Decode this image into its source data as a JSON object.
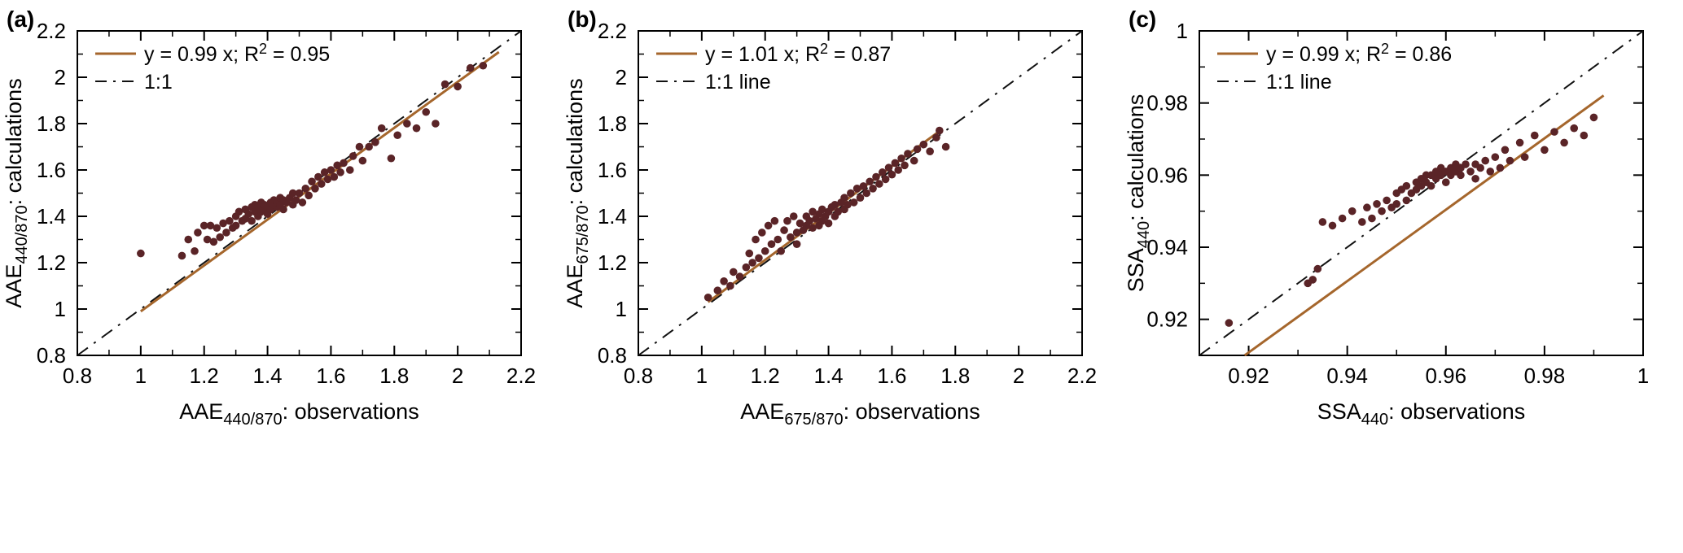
{
  "figure": {
    "background": "#ffffff",
    "text_color": "#000000"
  },
  "chart_data": [
    {
      "type": "scatter",
      "panel_label": "(a)",
      "xlabel": {
        "base": "AAE",
        "sub": "440/870",
        "suffix": ": observations"
      },
      "ylabel": {
        "base": "AAE",
        "sub": "440/870",
        "suffix": ": calculations"
      },
      "xlim": [
        0.8,
        2.2
      ],
      "ylim": [
        0.8,
        2.2
      ],
      "xticks": {
        "values": [
          0.8,
          1,
          1.2,
          1.4,
          1.6,
          1.8,
          2,
          2.2
        ],
        "labels": [
          "0.8",
          "1",
          "1.2",
          "1.4",
          "1.6",
          "1.8",
          "2",
          "2.2"
        ]
      },
      "yticks": {
        "values": [
          0.8,
          1,
          1.2,
          1.4,
          1.6,
          1.8,
          2,
          2.2
        ],
        "labels": [
          "0.8",
          "1",
          "1.2",
          "1.4",
          "1.6",
          "1.8",
          "2",
          "2.2"
        ]
      },
      "fit": {
        "equation_pre": "y = 0.99 x; R",
        "equation_sup": "2",
        "equation_post": " = 0.95",
        "slope": 0.99,
        "r_squared": 0.95,
        "x_range": [
          1.0,
          2.13
        ],
        "color": "#a5662c"
      },
      "one_to_one": {
        "label": "1:1",
        "color": "#111111",
        "dash": "16 9 3 9"
      },
      "marker": {
        "color": "#5a2427",
        "radius": 4.8
      },
      "points": [
        [
          1.0,
          1.24
        ],
        [
          1.13,
          1.23
        ],
        [
          1.15,
          1.3
        ],
        [
          1.17,
          1.25
        ],
        [
          1.18,
          1.33
        ],
        [
          1.2,
          1.36
        ],
        [
          1.21,
          1.3
        ],
        [
          1.22,
          1.36
        ],
        [
          1.23,
          1.29
        ],
        [
          1.24,
          1.35
        ],
        [
          1.25,
          1.31
        ],
        [
          1.26,
          1.37
        ],
        [
          1.27,
          1.33
        ],
        [
          1.28,
          1.38
        ],
        [
          1.29,
          1.35
        ],
        [
          1.3,
          1.4
        ],
        [
          1.3,
          1.36
        ],
        [
          1.31,
          1.42
        ],
        [
          1.32,
          1.38
        ],
        [
          1.33,
          1.43
        ],
        [
          1.33,
          1.39
        ],
        [
          1.34,
          1.41
        ],
        [
          1.35,
          1.44
        ],
        [
          1.35,
          1.38
        ],
        [
          1.36,
          1.42
        ],
        [
          1.36,
          1.45
        ],
        [
          1.37,
          1.4
        ],
        [
          1.37,
          1.44
        ],
        [
          1.38,
          1.42
        ],
        [
          1.38,
          1.46
        ],
        [
          1.39,
          1.43
        ],
        [
          1.39,
          1.45
        ],
        [
          1.4,
          1.41
        ],
        [
          1.4,
          1.44
        ],
        [
          1.41,
          1.46
        ],
        [
          1.41,
          1.43
        ],
        [
          1.42,
          1.45
        ],
        [
          1.42,
          1.47
        ],
        [
          1.43,
          1.44
        ],
        [
          1.43,
          1.46
        ],
        [
          1.44,
          1.45
        ],
        [
          1.44,
          1.48
        ],
        [
          1.45,
          1.43
        ],
        [
          1.45,
          1.47
        ],
        [
          1.46,
          1.46
        ],
        [
          1.47,
          1.48
        ],
        [
          1.48,
          1.45
        ],
        [
          1.48,
          1.5
        ],
        [
          1.49,
          1.47
        ],
        [
          1.5,
          1.5
        ],
        [
          1.51,
          1.46
        ],
        [
          1.52,
          1.52
        ],
        [
          1.53,
          1.49
        ],
        [
          1.54,
          1.55
        ],
        [
          1.55,
          1.52
        ],
        [
          1.56,
          1.57
        ],
        [
          1.57,
          1.54
        ],
        [
          1.58,
          1.59
        ],
        [
          1.59,
          1.56
        ],
        [
          1.6,
          1.6
        ],
        [
          1.61,
          1.57
        ],
        [
          1.62,
          1.62
        ],
        [
          1.63,
          1.59
        ],
        [
          1.64,
          1.63
        ],
        [
          1.66,
          1.6
        ],
        [
          1.67,
          1.66
        ],
        [
          1.69,
          1.7
        ],
        [
          1.7,
          1.64
        ],
        [
          1.72,
          1.7
        ],
        [
          1.74,
          1.72
        ],
        [
          1.76,
          1.78
        ],
        [
          1.79,
          1.65
        ],
        [
          1.81,
          1.75
        ],
        [
          1.84,
          1.8
        ],
        [
          1.87,
          1.78
        ],
        [
          1.9,
          1.85
        ],
        [
          1.93,
          1.8
        ],
        [
          1.96,
          1.97
        ],
        [
          2.0,
          1.96
        ],
        [
          2.04,
          2.04
        ],
        [
          2.08,
          2.05
        ]
      ]
    },
    {
      "type": "scatter",
      "panel_label": "(b)",
      "xlabel": {
        "base": "AAE",
        "sub": "675/870",
        "suffix": ": observations"
      },
      "ylabel": {
        "base": "AAE",
        "sub": "675/870",
        "suffix": ": calculations"
      },
      "xlim": [
        0.8,
        2.2
      ],
      "ylim": [
        0.8,
        2.2
      ],
      "xticks": {
        "values": [
          0.8,
          1,
          1.2,
          1.4,
          1.6,
          1.8,
          2,
          2.2
        ],
        "labels": [
          "0.8",
          "1",
          "1.2",
          "1.4",
          "1.6",
          "1.8",
          "2",
          "2.2"
        ]
      },
      "yticks": {
        "values": [
          0.8,
          1,
          1.2,
          1.4,
          1.6,
          1.8,
          2,
          2.2
        ],
        "labels": [
          "0.8",
          "1",
          "1.2",
          "1.4",
          "1.6",
          "1.8",
          "2",
          "2.2"
        ]
      },
      "fit": {
        "equation_pre": "y = 1.01 x; R",
        "equation_sup": "2",
        "equation_post": " = 0.87",
        "slope": 1.01,
        "r_squared": 0.87,
        "x_range": [
          1.02,
          1.76
        ],
        "color": "#a5662c"
      },
      "one_to_one": {
        "label": "1:1 line",
        "color": "#111111",
        "dash": "16 9 3 9"
      },
      "marker": {
        "color": "#5a2427",
        "radius": 4.8
      },
      "points": [
        [
          1.02,
          1.05
        ],
        [
          1.05,
          1.08
        ],
        [
          1.07,
          1.12
        ],
        [
          1.09,
          1.1
        ],
        [
          1.1,
          1.16
        ],
        [
          1.12,
          1.14
        ],
        [
          1.14,
          1.18
        ],
        [
          1.15,
          1.24
        ],
        [
          1.16,
          1.2
        ],
        [
          1.17,
          1.3
        ],
        [
          1.18,
          1.22
        ],
        [
          1.19,
          1.33
        ],
        [
          1.2,
          1.25
        ],
        [
          1.21,
          1.36
        ],
        [
          1.22,
          1.28
        ],
        [
          1.23,
          1.38
        ],
        [
          1.24,
          1.3
        ],
        [
          1.25,
          1.25
        ],
        [
          1.26,
          1.34
        ],
        [
          1.27,
          1.38
        ],
        [
          1.28,
          1.31
        ],
        [
          1.29,
          1.4
        ],
        [
          1.3,
          1.33
        ],
        [
          1.3,
          1.28
        ],
        [
          1.31,
          1.37
        ],
        [
          1.32,
          1.34
        ],
        [
          1.33,
          1.4
        ],
        [
          1.33,
          1.36
        ],
        [
          1.34,
          1.38
        ],
        [
          1.35,
          1.42
        ],
        [
          1.35,
          1.35
        ],
        [
          1.36,
          1.39
        ],
        [
          1.37,
          1.36
        ],
        [
          1.37,
          1.41
        ],
        [
          1.38,
          1.38
        ],
        [
          1.38,
          1.43
        ],
        [
          1.39,
          1.4
        ],
        [
          1.4,
          1.37
        ],
        [
          1.4,
          1.42
        ],
        [
          1.41,
          1.44
        ],
        [
          1.42,
          1.4
        ],
        [
          1.42,
          1.45
        ],
        [
          1.43,
          1.42
        ],
        [
          1.44,
          1.46
        ],
        [
          1.45,
          1.43
        ],
        [
          1.45,
          1.48
        ],
        [
          1.46,
          1.45
        ],
        [
          1.47,
          1.5
        ],
        [
          1.48,
          1.46
        ],
        [
          1.49,
          1.52
        ],
        [
          1.5,
          1.48
        ],
        [
          1.51,
          1.53
        ],
        [
          1.52,
          1.5
        ],
        [
          1.53,
          1.55
        ],
        [
          1.54,
          1.52
        ],
        [
          1.55,
          1.57
        ],
        [
          1.56,
          1.54
        ],
        [
          1.57,
          1.59
        ],
        [
          1.58,
          1.56
        ],
        [
          1.59,
          1.61
        ],
        [
          1.6,
          1.58
        ],
        [
          1.61,
          1.63
        ],
        [
          1.62,
          1.6
        ],
        [
          1.63,
          1.65
        ],
        [
          1.64,
          1.62
        ],
        [
          1.65,
          1.67
        ],
        [
          1.67,
          1.64
        ],
        [
          1.68,
          1.69
        ],
        [
          1.7,
          1.71
        ],
        [
          1.72,
          1.68
        ],
        [
          1.74,
          1.74
        ],
        [
          1.75,
          1.77
        ],
        [
          1.77,
          1.7
        ]
      ]
    },
    {
      "type": "scatter",
      "panel_label": "(c)",
      "xlabel": {
        "base": "SSA",
        "sub": "440",
        "suffix": ": observations"
      },
      "ylabel": {
        "base": "SSA",
        "sub": "440",
        "suffix": ": calculations"
      },
      "xlim": [
        0.91,
        1.0
      ],
      "ylim": [
        0.91,
        1.0
      ],
      "xticks": {
        "values": [
          0.92,
          0.94,
          0.96,
          0.98,
          1
        ],
        "labels": [
          "0.92",
          "0.94",
          "0.96",
          "0.98",
          "1"
        ]
      },
      "yticks": {
        "values": [
          0.92,
          0.94,
          0.96,
          0.98,
          1
        ],
        "labels": [
          "0.92",
          "0.94",
          "0.96",
          "0.98",
          "1"
        ]
      },
      "fit": {
        "equation_pre": "y = 0.99 x; R",
        "equation_sup": "2",
        "equation_post": " = 0.86",
        "slope": 0.99,
        "r_squared": 0.86,
        "x_range": [
          0.9192,
          0.992
        ],
        "color": "#a5662c"
      },
      "one_to_one": {
        "label": "1:1 line",
        "color": "#111111",
        "dash": "16 9 3 9"
      },
      "marker": {
        "color": "#5a2427",
        "radius": 4.8
      },
      "points": [
        [
          0.916,
          0.919
        ],
        [
          0.932,
          0.93
        ],
        [
          0.933,
          0.931
        ],
        [
          0.934,
          0.934
        ],
        [
          0.935,
          0.947
        ],
        [
          0.937,
          0.946
        ],
        [
          0.939,
          0.948
        ],
        [
          0.941,
          0.95
        ],
        [
          0.943,
          0.947
        ],
        [
          0.944,
          0.951
        ],
        [
          0.945,
          0.948
        ],
        [
          0.946,
          0.952
        ],
        [
          0.947,
          0.95
        ],
        [
          0.948,
          0.953
        ],
        [
          0.949,
          0.951
        ],
        [
          0.95,
          0.955
        ],
        [
          0.95,
          0.952
        ],
        [
          0.951,
          0.956
        ],
        [
          0.952,
          0.953
        ],
        [
          0.952,
          0.957
        ],
        [
          0.953,
          0.955
        ],
        [
          0.954,
          0.958
        ],
        [
          0.954,
          0.956
        ],
        [
          0.955,
          0.959
        ],
        [
          0.955,
          0.957
        ],
        [
          0.956,
          0.96
        ],
        [
          0.956,
          0.958
        ],
        [
          0.957,
          0.96
        ],
        [
          0.957,
          0.957
        ],
        [
          0.958,
          0.961
        ],
        [
          0.958,
          0.959
        ],
        [
          0.959,
          0.962
        ],
        [
          0.959,
          0.96
        ],
        [
          0.96,
          0.961
        ],
        [
          0.96,
          0.958
        ],
        [
          0.961,
          0.962
        ],
        [
          0.961,
          0.96
        ],
        [
          0.962,
          0.963
        ],
        [
          0.962,
          0.961
        ],
        [
          0.963,
          0.962
        ],
        [
          0.963,
          0.96
        ],
        [
          0.964,
          0.963
        ],
        [
          0.965,
          0.961
        ],
        [
          0.966,
          0.963
        ],
        [
          0.966,
          0.959
        ],
        [
          0.967,
          0.962
        ],
        [
          0.968,
          0.964
        ],
        [
          0.969,
          0.961
        ],
        [
          0.97,
          0.965
        ],
        [
          0.971,
          0.962
        ],
        [
          0.972,
          0.967
        ],
        [
          0.973,
          0.964
        ],
        [
          0.975,
          0.969
        ],
        [
          0.976,
          0.965
        ],
        [
          0.978,
          0.971
        ],
        [
          0.98,
          0.967
        ],
        [
          0.982,
          0.972
        ],
        [
          0.984,
          0.969
        ],
        [
          0.986,
          0.973
        ],
        [
          0.988,
          0.971
        ],
        [
          0.99,
          0.976
        ]
      ]
    }
  ]
}
